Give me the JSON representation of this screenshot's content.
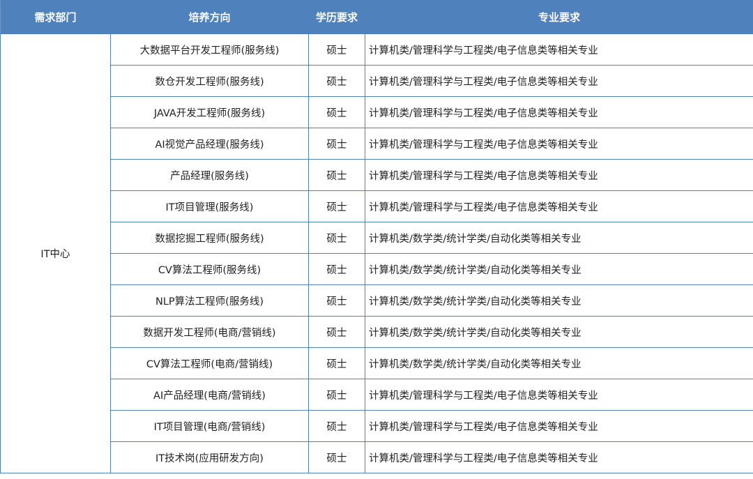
{
  "header": [
    "需求部门",
    "培养方向",
    "学历要求",
    "专业要求"
  ],
  "department": "IT中心",
  "rows": [
    {
      "direction": "大数据平台开发工程师(服务线)",
      "degree": "硕士",
      "major": "计算机类/管理科学与工程类/电子信息类等相关专业"
    },
    {
      "direction": "数仓开发工程师(服务线)",
      "degree": "硕士",
      "major": "计算机类/管理科学与工程类/电子信息类等相关专业"
    },
    {
      "direction": "JAVA开发工程师(服务线)",
      "degree": "硕士",
      "major": "计算机类/管理科学与工程类/电子信息类等相关专业"
    },
    {
      "direction": "AI视觉产品经理(服务线)",
      "degree": "硕士",
      "major": "计算机类/管理科学与工程类/电子信息类等相关专业"
    },
    {
      "direction": "产品经理(服务线)",
      "degree": "硕士",
      "major": "计算机类/管理科学与工程类/电子信息类等相关专业"
    },
    {
      "direction": "IT项目管理(服务线)",
      "degree": "硕士",
      "major": "计算机类/管理科学与工程类/电子信息类等相关专业"
    },
    {
      "direction": "数据挖掘工程师(服务线)",
      "degree": "硕士",
      "major": "计算机类/数学类/统计学类/自动化类等相关专业"
    },
    {
      "direction": "CV算法工程师(服务线)",
      "degree": "硕士",
      "major": "计算机类/数学类/统计学类/自动化类等相关专业"
    },
    {
      "direction": "NLP算法工程师(服务线)",
      "degree": "硕士",
      "major": "计算机类/数学类/统计学类/自动化类等相关专业"
    },
    {
      "direction": "数据开发工程师(电商/营销线)",
      "degree": "硕士",
      "major": "计算机类/数学类/统计学类/自动化类等相关专业"
    },
    {
      "direction": "CV算法工程师(电商/营销线)",
      "degree": "硕士",
      "major": "计算机类/数学类/统计学类/自动化类等相关专业"
    },
    {
      "direction": "AI产品经理(电商/营销线)",
      "degree": "硕士",
      "major": "计算机类/管理科学与工程类/电子信息类等相关专业"
    },
    {
      "direction": "IT项目管理(电商/营销线)",
      "degree": "硕士",
      "major": "计算机类/管理科学与工程类/电子信息类等相关专业"
    },
    {
      "direction": "IT技术岗(应用研发方向)",
      "degree": "硕士",
      "major": "计算机类/管理科学与工程类/电子信息类等相关专业"
    }
  ],
  "colors": {
    "header_bg": "#4f81bd",
    "border": "#4f81bd"
  }
}
